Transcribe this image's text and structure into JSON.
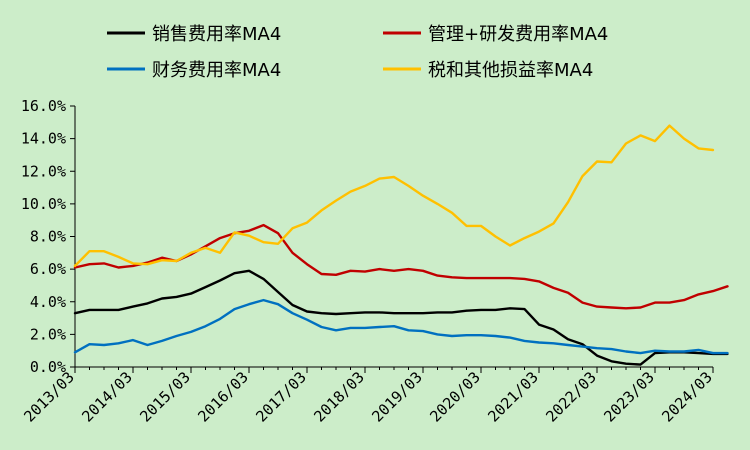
{
  "chart_data": {
    "type": "line",
    "title": "",
    "xlabel": "",
    "ylabel": "",
    "ylim": [
      0,
      16
    ],
    "yticks": [
      "0.0%",
      "2.0%",
      "4.0%",
      "6.0%",
      "8.0%",
      "10.0%",
      "12.0%",
      "14.0%",
      "16.0%"
    ],
    "xticks": [
      "2013/03",
      "2014/03",
      "2015/03",
      "2016/03",
      "2017/03",
      "2018/03",
      "2019/03",
      "2020/03",
      "2021/03",
      "2022/03",
      "2023/03",
      "2024/03"
    ],
    "x_quarter_start": "2013/03",
    "grid": false,
    "legend_position": "top",
    "series": [
      {
        "name": "销售费用率MA4",
        "color": "#000000",
        "values": [
          3.3,
          3.5,
          3.5,
          3.5,
          3.7,
          3.9,
          4.2,
          4.3,
          4.5,
          4.9,
          5.3,
          5.75,
          5.9,
          5.4,
          4.6,
          3.8,
          3.4,
          3.3,
          3.25,
          3.3,
          3.35,
          3.35,
          3.3,
          3.3,
          3.3,
          3.35,
          3.35,
          3.45,
          3.5,
          3.5,
          3.6,
          3.55,
          2.6,
          2.3,
          1.7,
          1.4,
          0.7,
          0.35,
          0.2,
          0.15,
          0.85,
          0.9,
          0.9,
          0.85,
          0.8,
          0.8
        ]
      },
      {
        "name": "管理+研发费用率MA4",
        "color": "#c00000",
        "values": [
          6.1,
          6.3,
          6.35,
          6.1,
          6.2,
          6.4,
          6.7,
          6.5,
          6.9,
          7.4,
          7.9,
          8.2,
          8.35,
          8.7,
          8.2,
          7.0,
          6.3,
          5.7,
          5.65,
          5.9,
          5.85,
          6.0,
          5.9,
          6.0,
          5.9,
          5.6,
          5.5,
          5.45,
          5.45,
          5.45,
          5.45,
          5.4,
          5.25,
          4.85,
          4.55,
          3.95,
          3.7,
          3.65,
          3.6,
          3.65,
          3.95,
          3.95,
          4.1,
          4.45,
          4.65,
          4.95
        ]
      },
      {
        "name": "财务费用率MA4",
        "color": "#0070c0",
        "values": [
          0.9,
          1.4,
          1.35,
          1.45,
          1.65,
          1.35,
          1.6,
          1.9,
          2.15,
          2.5,
          2.95,
          3.55,
          3.85,
          4.1,
          3.85,
          3.3,
          2.9,
          2.45,
          2.25,
          2.4,
          2.4,
          2.45,
          2.5,
          2.25,
          2.2,
          2.0,
          1.9,
          1.95,
          1.95,
          1.9,
          1.8,
          1.6,
          1.5,
          1.45,
          1.35,
          1.25,
          1.15,
          1.1,
          0.95,
          0.85,
          1.0,
          0.95,
          0.95,
          1.05,
          0.85,
          0.85
        ]
      },
      {
        "name": "税和其他损益率MA4",
        "color": "#ffc000",
        "values": [
          6.2,
          7.1,
          7.1,
          6.75,
          6.35,
          6.3,
          6.55,
          6.5,
          7.0,
          7.3,
          7.0,
          8.25,
          8.05,
          7.65,
          7.55,
          8.5,
          8.85,
          9.6,
          10.2,
          10.75,
          11.1,
          11.55,
          11.65,
          11.1,
          10.5,
          10.0,
          9.45,
          8.65,
          8.65,
          8.0,
          7.45,
          7.9,
          8.3,
          8.8,
          10.1,
          11.7,
          12.6,
          12.55,
          13.7,
          14.2,
          13.85,
          14.8,
          14.0,
          13.4,
          13.3
        ]
      }
    ]
  }
}
